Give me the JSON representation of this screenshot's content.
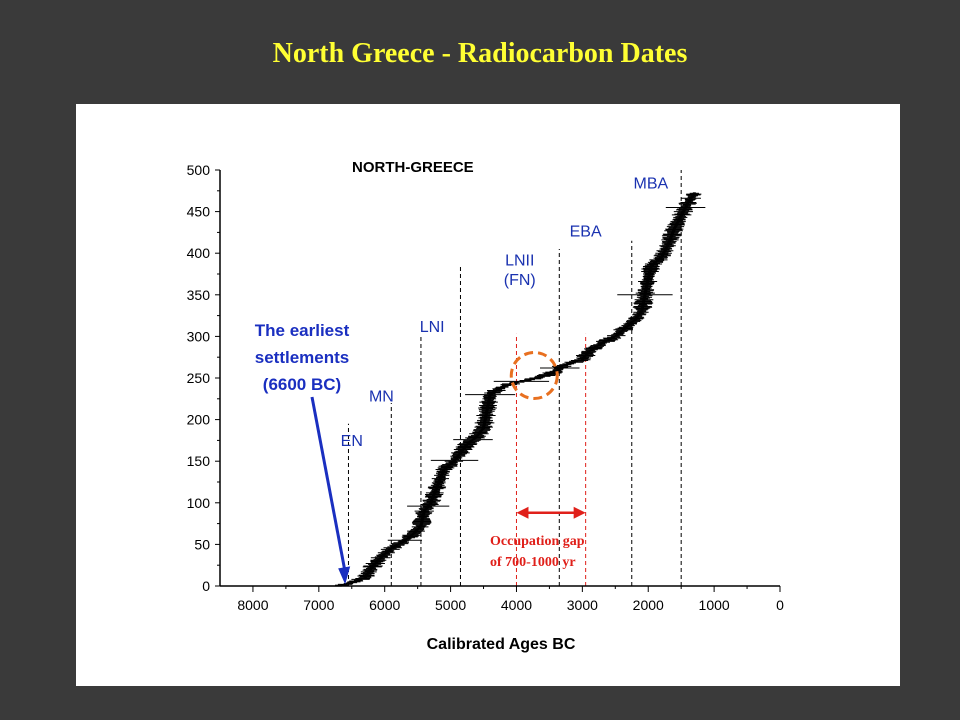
{
  "slide": {
    "title": "North Greece - Radiocarbon Dates"
  },
  "chart_data": {
    "type": "scatter",
    "title": "NORTH-GREECE",
    "xlabel": "Calibrated Ages BC",
    "ylabel": "",
    "x_reversed": true,
    "xlim": [
      8500,
      0
    ],
    "ylim": [
      0,
      500
    ],
    "x_ticks": [
      8000,
      7000,
      6000,
      5000,
      4000,
      3000,
      2000,
      1000,
      0
    ],
    "y_ticks": [
      0,
      50,
      100,
      150,
      200,
      250,
      300,
      350,
      400,
      450,
      500
    ],
    "grid": false,
    "series_color": "#000000",
    "error_bars": "horizontal",
    "cumulative_profile": [
      {
        "x": 7500,
        "y": 0
      },
      {
        "x": 6650,
        "y": 1
      },
      {
        "x": 6500,
        "y": 4
      },
      {
        "x": 6300,
        "y": 10
      },
      {
        "x": 6200,
        "y": 22
      },
      {
        "x": 6050,
        "y": 35
      },
      {
        "x": 5900,
        "y": 45
      },
      {
        "x": 5750,
        "y": 52
      },
      {
        "x": 5600,
        "y": 60
      },
      {
        "x": 5450,
        "y": 72
      },
      {
        "x": 5400,
        "y": 90
      },
      {
        "x": 5300,
        "y": 100
      },
      {
        "x": 5200,
        "y": 120
      },
      {
        "x": 5100,
        "y": 140
      },
      {
        "x": 4950,
        "y": 150
      },
      {
        "x": 4850,
        "y": 160
      },
      {
        "x": 4750,
        "y": 170
      },
      {
        "x": 4600,
        "y": 180
      },
      {
        "x": 4500,
        "y": 190
      },
      {
        "x": 4450,
        "y": 210
      },
      {
        "x": 4400,
        "y": 230
      },
      {
        "x": 4250,
        "y": 238
      },
      {
        "x": 4050,
        "y": 244
      },
      {
        "x": 3800,
        "y": 248
      },
      {
        "x": 3550,
        "y": 253
      },
      {
        "x": 3400,
        "y": 258
      },
      {
        "x": 3300,
        "y": 265
      },
      {
        "x": 3000,
        "y": 272
      },
      {
        "x": 2900,
        "y": 282
      },
      {
        "x": 2700,
        "y": 292
      },
      {
        "x": 2500,
        "y": 300
      },
      {
        "x": 2350,
        "y": 310
      },
      {
        "x": 2200,
        "y": 320
      },
      {
        "x": 2100,
        "y": 330
      },
      {
        "x": 2050,
        "y": 350
      },
      {
        "x": 2000,
        "y": 370
      },
      {
        "x": 1950,
        "y": 385
      },
      {
        "x": 1800,
        "y": 395
      },
      {
        "x": 1700,
        "y": 410
      },
      {
        "x": 1600,
        "y": 430
      },
      {
        "x": 1500,
        "y": 445
      },
      {
        "x": 1400,
        "y": 460
      },
      {
        "x": 1300,
        "y": 472
      }
    ],
    "period_boundaries": [
      {
        "label": "EN",
        "x": 6550,
        "ytop": 195,
        "color": "#000000"
      },
      {
        "label": "MN",
        "x": 5900,
        "ytop": 220,
        "color": "#000000"
      },
      {
        "label": "LNI",
        "x": 5450,
        "ytop": 300,
        "color": "#000000"
      },
      {
        "label": "",
        "x": 4850,
        "ytop": 385,
        "color": "#000000"
      },
      {
        "label": "",
        "x": 4000,
        "ytop": 303,
        "color": "#e0201a"
      },
      {
        "label": "",
        "x": 3350,
        "ytop": 405,
        "color": "#000000"
      },
      {
        "label": "",
        "x": 2950,
        "ytop": 303,
        "color": "#e0201a"
      },
      {
        "label": "",
        "x": 2250,
        "ytop": 415,
        "color": "#000000"
      },
      {
        "label": "",
        "x": 1500,
        "ytop": 500,
        "color": "#000000"
      }
    ],
    "period_labels": [
      {
        "text": "EN",
        "x": 6500,
        "y": 168
      },
      {
        "text": "MN",
        "x": 6050,
        "y": 222
      },
      {
        "text": "LNI",
        "x": 5280,
        "y": 305
      },
      {
        "text": "LNII",
        "x": 3950,
        "y": 385
      },
      {
        "text": "(FN)",
        "x": 3950,
        "y": 362
      },
      {
        "text": "EBA",
        "x": 2950,
        "y": 420
      },
      {
        "text": "MBA",
        "x": 1960,
        "y": 478
      }
    ],
    "annotations": {
      "earliest": {
        "lines": [
          "The earliest",
          "settlements",
          "(6600 BC)"
        ],
        "arrow_to": {
          "x": 6600,
          "y": 2
        },
        "color": "#1a2fc0"
      },
      "gap_circle": {
        "x": 3730,
        "y": 253,
        "color": "#e87020"
      },
      "gap": {
        "from": 4000,
        "to": 2950,
        "y": 88,
        "lines": [
          "Occupation gap",
          "of 700-1000 yr"
        ],
        "color": "#e0201a"
      }
    }
  }
}
